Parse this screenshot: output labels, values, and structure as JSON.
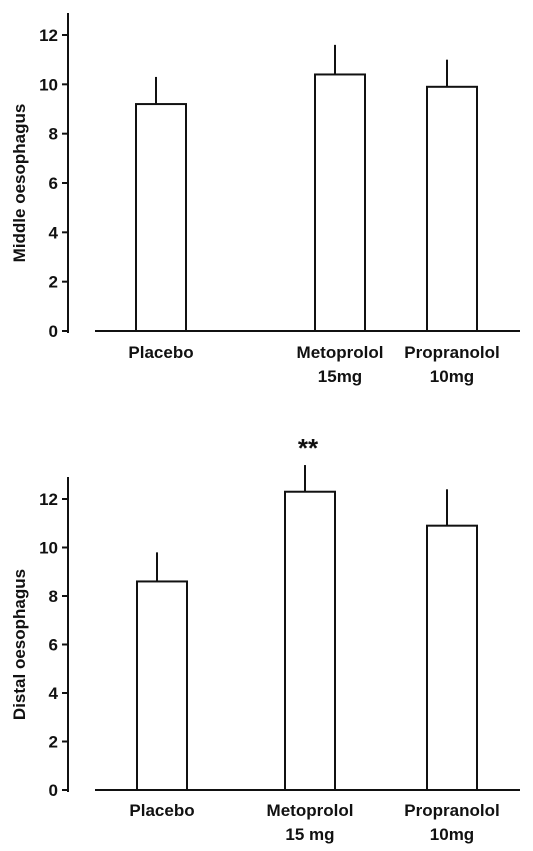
{
  "chart_data": [
    {
      "type": "bar",
      "categories": [
        [
          "Placebo"
        ],
        [
          "Metoprolol",
          "15mg"
        ],
        [
          "Propranolol",
          "10mg"
        ]
      ],
      "values": [
        9.2,
        10.4,
        9.9
      ],
      "errors": [
        1.1,
        1.2,
        1.1
      ],
      "annotations": [
        "",
        "",
        ""
      ],
      "ylabel": "Middle oesophagus",
      "ylim": [
        0,
        12
      ],
      "yticks": [
        "0",
        "2",
        "4",
        "6",
        "8",
        "10",
        "12"
      ],
      "grid": false
    },
    {
      "type": "bar",
      "categories": [
        [
          "Placebo"
        ],
        [
          "Metoprolol",
          "15 mg"
        ],
        [
          "Propranolol",
          "10mg"
        ]
      ],
      "values": [
        8.6,
        12.3,
        10.9
      ],
      "errors": [
        1.2,
        1.1,
        1.5
      ],
      "annotations": [
        "",
        "**",
        ""
      ],
      "ylabel": "Distal oesophagus",
      "ylim": [
        0,
        12
      ],
      "yticks": [
        "0",
        "2",
        "4",
        "6",
        "8",
        "10",
        "12"
      ],
      "grid": false
    }
  ]
}
